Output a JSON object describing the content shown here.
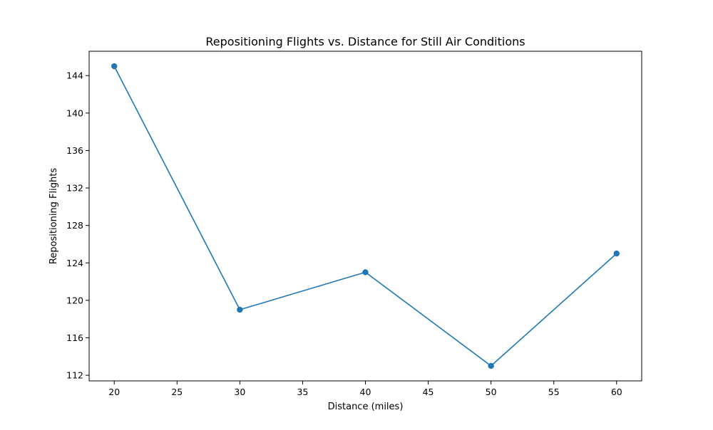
{
  "chart_data": {
    "type": "line",
    "title": "Repositioning Flights vs. Distance for Still Air Conditions",
    "xlabel": "Distance (miles)",
    "ylabel": "Repositioning Flights",
    "x": [
      20,
      30,
      40,
      50,
      60
    ],
    "series": [
      {
        "values": [
          145,
          119,
          123,
          113,
          125
        ]
      }
    ],
    "xlim": [
      18,
      62
    ],
    "ylim": [
      111.4,
      146.6
    ],
    "xticks": [
      20,
      25,
      30,
      35,
      40,
      45,
      50,
      55,
      60
    ],
    "yticks": [
      112,
      116,
      120,
      124,
      128,
      132,
      136,
      140,
      144
    ],
    "grid": false,
    "legend": "none",
    "colors": {
      "line": "#1f77b4",
      "marker": "#1f77b4",
      "axes": "#000000"
    },
    "markers": true
  }
}
